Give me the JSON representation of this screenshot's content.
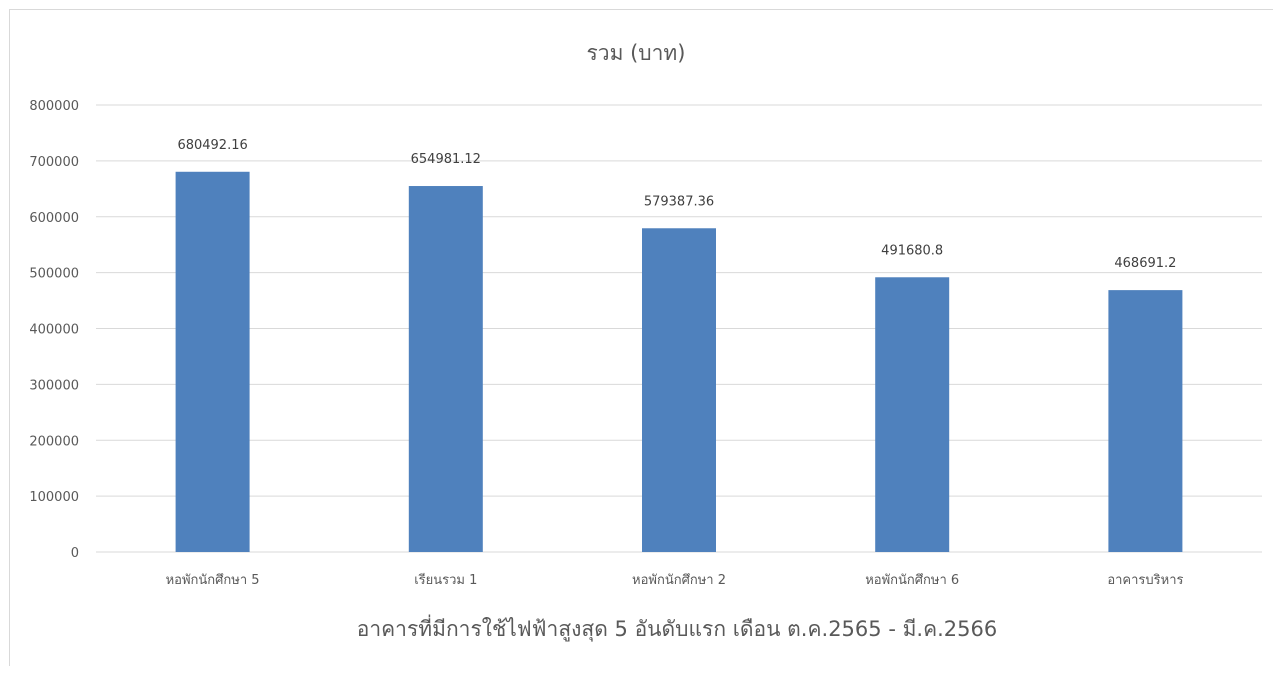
{
  "chart_data": {
    "type": "bar",
    "title": "รวม (บาท)",
    "xlabel": "อาคารที่มีการใช้ไฟฟ้าสูงสุด 5 อันดับแรก เดือน ต.ค.2565 - มี.ค.2566",
    "ylabel": "",
    "categories": [
      "หอพักนักศึกษา 5",
      "เรียนรวม 1",
      "หอพักนักศึกษา 2",
      "หอพักนักศึกษา 6",
      "อาคารบริหาร"
    ],
    "values": [
      680492.16,
      654981.12,
      579387.36,
      491680.8,
      468691.2
    ],
    "data_labels": [
      "680492.16",
      "654981.12",
      "579387.36",
      "491680.8",
      "468691.2"
    ],
    "ylim": [
      0,
      800000
    ],
    "yticks": [
      "0",
      "100000",
      "200000",
      "300000",
      "400000",
      "500000",
      "600000",
      "700000",
      "800000"
    ],
    "grid": true,
    "legend": "none",
    "colors": {
      "bar": "#4f81bd",
      "grid": "#d9d9d9",
      "text": "#595959"
    }
  }
}
